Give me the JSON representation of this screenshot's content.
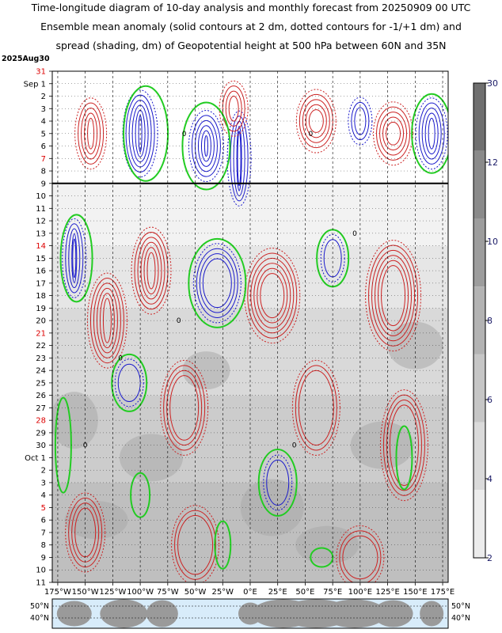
{
  "title_lines": [
    "Time-longitude diagram of 10-day analysis and monthly forecast from 20250909 00 UTC",
    "Ensemble mean anomaly (solid contours at 2 dm, dotted contours for -1/+1 dm) and",
    "spread (shading, dm) of Geopotential height at 500 hPa between 60N and 35N"
  ],
  "chart_data": {
    "type": "heatmap",
    "title": "Time-longitude diagram of 10-day analysis and monthly forecast from 20250909 00 UTC",
    "xlabel": "",
    "ylabel": "",
    "x_ticks": [
      "175°W",
      "150°W",
      "125°W",
      "100°W",
      "75°W",
      "50°W",
      "25°W",
      "0°E",
      "25°E",
      "50°E",
      "75°E",
      "100°E",
      "125°E",
      "150°E",
      "175°E"
    ],
    "xlim": [
      -180,
      180
    ],
    "y_top_label": "2025Aug30",
    "y_ticks": [
      {
        "label": "31",
        "red": true
      },
      {
        "label": "Sep 1",
        "red": false
      },
      {
        "label": "2",
        "red": false
      },
      {
        "label": "3",
        "red": false
      },
      {
        "label": "4",
        "red": false
      },
      {
        "label": "5",
        "red": false
      },
      {
        "label": "6",
        "red": false
      },
      {
        "label": "7",
        "red": true
      },
      {
        "label": "8",
        "red": false
      },
      {
        "label": "9",
        "red": false
      },
      {
        "label": "10",
        "red": false
      },
      {
        "label": "11",
        "red": false
      },
      {
        "label": "12",
        "red": false
      },
      {
        "label": "13",
        "red": false
      },
      {
        "label": "14",
        "red": true
      },
      {
        "label": "15",
        "red": false
      },
      {
        "label": "16",
        "red": false
      },
      {
        "label": "17",
        "red": false
      },
      {
        "label": "18",
        "red": false
      },
      {
        "label": "19",
        "red": false
      },
      {
        "label": "20",
        "red": false
      },
      {
        "label": "21",
        "red": true
      },
      {
        "label": "22",
        "red": false
      },
      {
        "label": "23",
        "red": false
      },
      {
        "label": "24",
        "red": false
      },
      {
        "label": "25",
        "red": false
      },
      {
        "label": "26",
        "red": false
      },
      {
        "label": "27",
        "red": false
      },
      {
        "label": "28",
        "red": true
      },
      {
        "label": "29",
        "red": false
      },
      {
        "label": "30",
        "red": false
      },
      {
        "label": "Oct 1",
        "red": false
      },
      {
        "label": "2",
        "red": false
      },
      {
        "label": "3",
        "red": false
      },
      {
        "label": "4",
        "red": false
      },
      {
        "label": "5",
        "red": true
      },
      {
        "label": "6",
        "red": false
      },
      {
        "label": "7",
        "red": false
      },
      {
        "label": "8",
        "red": false
      },
      {
        "label": "9",
        "red": false
      },
      {
        "label": "10",
        "red": false
      },
      {
        "label": "11",
        "red": false
      }
    ],
    "analysis_end_label": "9",
    "colorbar": {
      "ticks": [
        "30",
        "12",
        "10",
        "8",
        "6",
        "4",
        "2"
      ],
      "colors": [
        "#6f6f6f",
        "#8a8a8a",
        "#9d9d9d",
        "#b3b3b3",
        "#c6c6c6",
        "#dadada",
        "#ececec"
      ]
    },
    "contour_colors": {
      "positive": "#cc2222",
      "negative": "#1a1acc",
      "zero": "#22cc22"
    },
    "map_labels": {
      "left": [
        "50°N",
        "40°N"
      ],
      "right": [
        "50°N",
        "40°N"
      ]
    },
    "zero_label": "0"
  }
}
